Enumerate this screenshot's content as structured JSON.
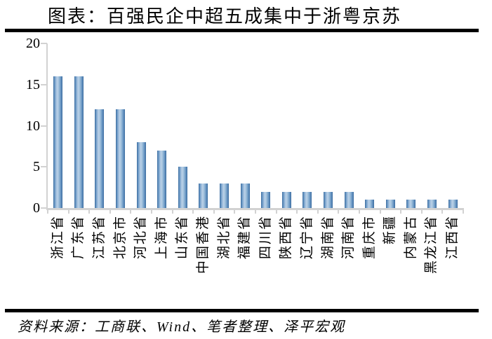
{
  "title": "图表：百强民企中超五成集中于浙粤京苏",
  "source_note": "资料来源：工商联、Wind、笔者整理、泽平宏观",
  "chart_data": {
    "type": "bar",
    "title": "图表：百强民企中超五成集中于浙粤京苏",
    "categories": [
      "浙江省",
      "广东省",
      "江苏省",
      "北京市",
      "河北省",
      "上海市",
      "山东省",
      "中国香港",
      "湖北省",
      "福建省",
      "四川省",
      "陕西省",
      "辽宁省",
      "湖南省",
      "河南省",
      "重庆市",
      "新疆",
      "内蒙古",
      "黑龙江省",
      "江西省"
    ],
    "values": [
      16,
      16,
      12,
      12,
      8,
      7,
      5,
      3,
      3,
      3,
      2,
      2,
      2,
      2,
      2,
      1,
      1,
      1,
      1,
      1
    ],
    "xlabel": "",
    "ylabel": "",
    "ylim": [
      0,
      20
    ],
    "yticks": [
      0,
      5,
      10,
      15,
      20
    ],
    "grid": false,
    "legend_position": "none",
    "bar_edge_color": "#3a6b9e",
    "bar_center_color": "#b9d0e7",
    "axis_color": "#d2d2d2",
    "rule_color": "#000000"
  }
}
